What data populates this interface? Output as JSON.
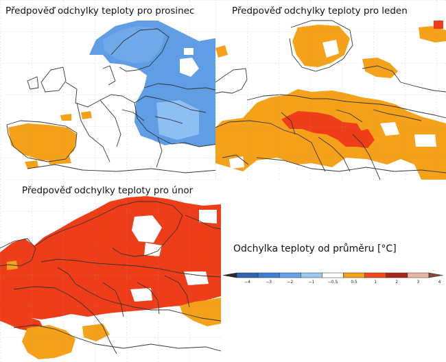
{
  "panels": [
    {
      "id": "dec",
      "title": "Předpověď odchylky teploty pro prosinec",
      "category": "cooler-than-average"
    },
    {
      "id": "jan",
      "title": "Předpověď odchylky teploty pro leden",
      "category": "warmer-than-average"
    },
    {
      "id": "feb",
      "title": "Předpověď odchylky teploty pro únor",
      "category": "much-warmer-than-average"
    }
  ],
  "legend": {
    "title": "Odchylka teploty od průměru [°C]",
    "ticks": [
      "−4",
      "−3",
      "−2",
      "−1",
      "−0.5",
      "0.5",
      "1",
      "2",
      "3",
      "4"
    ],
    "colors": [
      "#2f63b4",
      "#3e7fd3",
      "#66a3e8",
      "#9ec9f2",
      "#ffffff",
      "#f5a21a",
      "#f04a1a",
      "#a5281a",
      "#e9b7a5"
    ],
    "arrow_left_color": "#2a2a2a",
    "arrow_right_color": "#8a4a3a"
  },
  "colors": {
    "cold": "#5f9de5",
    "cold_light": "#8dbff2",
    "warm": "#f5a21a",
    "warm_strong": "#ee3d18",
    "coast": "#333333",
    "grid": "#9aa0a6"
  }
}
